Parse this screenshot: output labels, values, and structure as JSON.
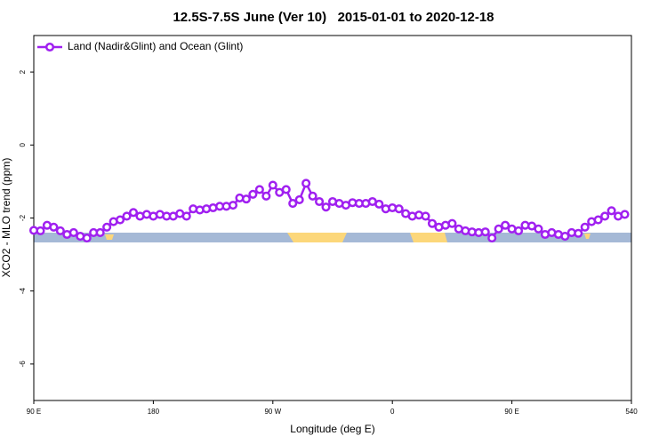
{
  "chart_data": {
    "type": "line",
    "title": "12.5S-7.5S June (Ver 10)   2015-01-01 to 2020-12-18",
    "xlabel": "Longitude (deg E)",
    "ylabel": "XCO2 - MLO trend (ppm)",
    "x": [
      90,
      95,
      100,
      105,
      110,
      115,
      120,
      125,
      130,
      135,
      140,
      145,
      150,
      155,
      160,
      165,
      170,
      175,
      180,
      185,
      190,
      195,
      200,
      205,
      210,
      215,
      220,
      225,
      230,
      235,
      240,
      245,
      250,
      255,
      260,
      265,
      270,
      275,
      280,
      285,
      290,
      295,
      300,
      305,
      310,
      315,
      320,
      325,
      330,
      335,
      340,
      345,
      350,
      355,
      360,
      365,
      370,
      375,
      380,
      385,
      390,
      395,
      400,
      405,
      410,
      415,
      420,
      425,
      430,
      435,
      440,
      445,
      450,
      455,
      460,
      465,
      470,
      475,
      480,
      485,
      490,
      495,
      500,
      505,
      510,
      515,
      520,
      525,
      530,
      535
    ],
    "series": [
      {
        "name": "Land (Nadir&Glint) and Ocean (Glint)",
        "color": "#a020f0",
        "values": [
          -2.34,
          -2.35,
          -2.2,
          -2.25,
          -2.35,
          -2.45,
          -2.4,
          -2.5,
          -2.55,
          -2.4,
          -2.4,
          -2.25,
          -2.1,
          -2.05,
          -1.95,
          -1.85,
          -1.95,
          -1.9,
          -1.95,
          -1.9,
          -1.95,
          -1.95,
          -1.88,
          -1.95,
          -1.75,
          -1.78,
          -1.75,
          -1.72,
          -1.68,
          -1.68,
          -1.65,
          -1.45,
          -1.48,
          -1.35,
          -1.22,
          -1.4,
          -1.1,
          -1.3,
          -1.22,
          -1.6,
          -1.5,
          -1.05,
          -1.4,
          -1.55,
          -1.7,
          -1.55,
          -1.6,
          -1.65,
          -1.58,
          -1.6,
          -1.6,
          -1.55,
          -1.62,
          -1.75,
          -1.72,
          -1.75,
          -1.88,
          -1.95,
          -1.92,
          -1.95,
          -2.15,
          -2.25,
          -2.2,
          -2.15,
          -2.3,
          -2.35,
          -2.38,
          -2.4,
          -2.38,
          -2.55,
          -2.3,
          -2.2,
          -2.3,
          -2.35,
          -2.2,
          -2.22,
          -2.3,
          -2.45,
          -2.4,
          -2.45,
          -2.5,
          -2.4,
          -2.42,
          -2.25,
          -2.1,
          -2.05,
          -1.95,
          -1.8,
          -1.95,
          -1.9
        ]
      }
    ],
    "xlim": [
      90,
      540
    ],
    "xticks": [
      {
        "value": 90,
        "label": "90 E"
      },
      180,
      {
        "value": 270,
        "label": "90 W"
      },
      {
        "value": 360,
        "label": "0"
      },
      {
        "value": 450,
        "label": "90 E"
      },
      540
    ],
    "ylim": [
      -7,
      3
    ],
    "yticks": [
      -6,
      -4,
      -2,
      0,
      2
    ],
    "legend": "top-left"
  }
}
